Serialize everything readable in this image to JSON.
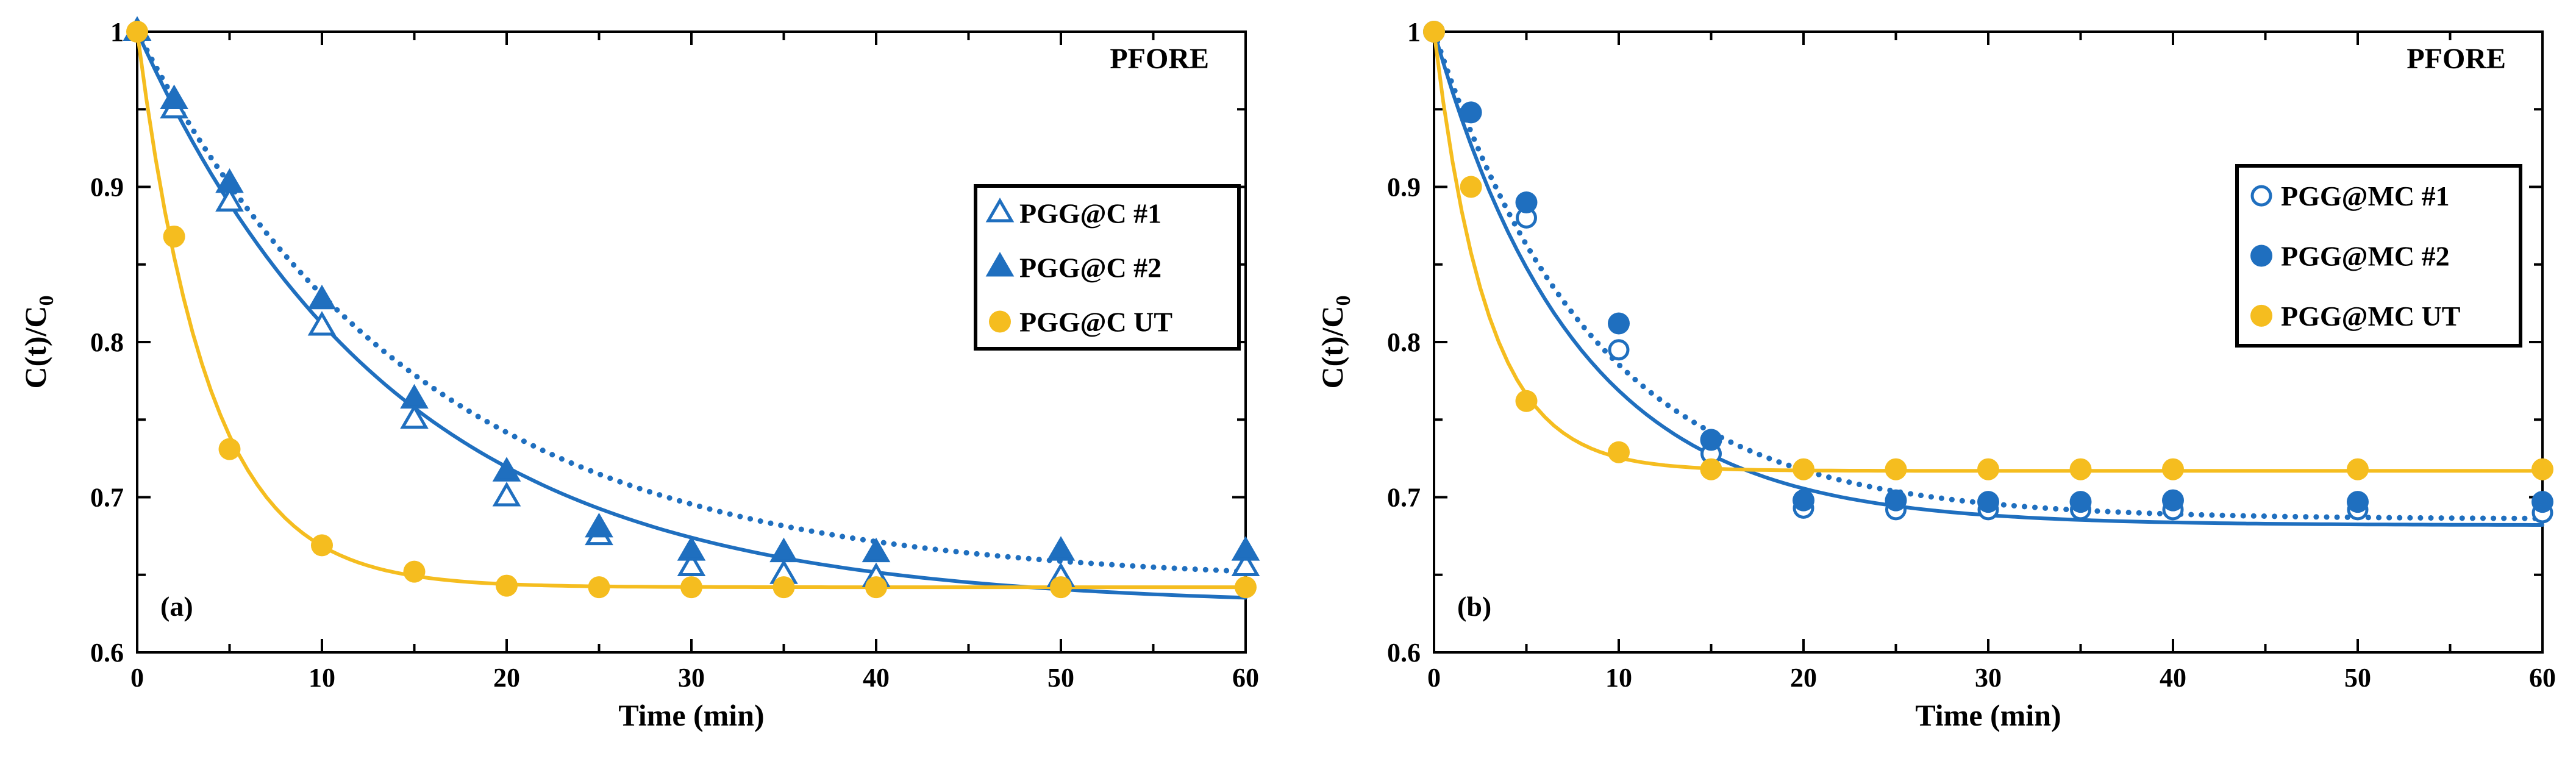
{
  "colors": {
    "blue": "#1f6fbf",
    "yellow": "#f5bd1f",
    "axis": "#000000",
    "background": "#ffffff"
  },
  "chart_data": [
    {
      "type": "scatter",
      "panel_label": "(a)",
      "title": "PFORE",
      "xlabel": "Time (min)",
      "ylabel_main": "C(t)/C",
      "ylabel_sub": "0",
      "xlim": [
        0,
        60
      ],
      "ylim": [
        0.6,
        1.0
      ],
      "x_ticks": [
        "0",
        "10",
        "20",
        "30",
        "40",
        "50",
        "60"
      ],
      "y_ticks": [
        "0.6",
        "0.7",
        "0.8",
        "0.9",
        "1"
      ],
      "grid": false,
      "legend_position": "right",
      "series": [
        {
          "name": "PGG@C #1",
          "marker": "triangle-open",
          "color": "#1f6fbf",
          "x": [
            0,
            2,
            5,
            10,
            15,
            20,
            25,
            30,
            35,
            40,
            50,
            60
          ],
          "y": [
            1.0,
            0.95,
            0.89,
            0.81,
            0.75,
            0.7,
            0.675,
            0.655,
            0.65,
            0.648,
            0.648,
            0.655
          ]
        },
        {
          "name": "PGG@C #2",
          "marker": "triangle-filled",
          "color": "#1f6fbf",
          "x": [
            0,
            2,
            5,
            10,
            15,
            20,
            25,
            30,
            35,
            40,
            50,
            60
          ],
          "y": [
            1.0,
            0.956,
            0.902,
            0.827,
            0.763,
            0.716,
            0.68,
            0.665,
            0.664,
            0.664,
            0.665,
            0.665
          ]
        },
        {
          "name": "PGG@C UT",
          "marker": "circle-filled",
          "color": "#f5bd1f",
          "x": [
            0,
            2,
            5,
            10,
            15,
            20,
            25,
            30,
            35,
            40,
            50,
            60
          ],
          "y": [
            1.0,
            0.868,
            0.731,
            0.669,
            0.652,
            0.643,
            0.642,
            0.642,
            0.642,
            0.642,
            0.642,
            0.642
          ]
        }
      ],
      "fits": [
        {
          "style": "solid",
          "color": "#1f6fbf",
          "model": "exponential",
          "c_inf": 0.63,
          "k": 0.071
        },
        {
          "style": "dotted",
          "color": "#1f6fbf",
          "model": "exponential",
          "c_inf": 0.645,
          "k": 0.065
        },
        {
          "style": "solid",
          "color": "#f5bd1f",
          "model": "exponential",
          "c_inf": 0.642,
          "k": 0.26
        }
      ]
    },
    {
      "type": "scatter",
      "panel_label": "(b)",
      "title": "PFORE",
      "xlabel": "Time (min)",
      "ylabel_main": "C(t)/C",
      "ylabel_sub": "0",
      "xlim": [
        0,
        60
      ],
      "ylim": [
        0.6,
        1.0
      ],
      "x_ticks": [
        "0",
        "10",
        "20",
        "30",
        "40",
        "50",
        "60"
      ],
      "y_ticks": [
        "0.6",
        "0.7",
        "0.8",
        "0.9",
        "1"
      ],
      "grid": false,
      "legend_position": "top-right",
      "series": [
        {
          "name": "PGG@MC #1",
          "marker": "circle-open",
          "color": "#1f6fbf",
          "x": [
            0,
            2,
            5,
            10,
            15,
            20,
            25,
            30,
            35,
            40,
            50,
            60
          ],
          "y": [
            1.0,
            0.948,
            0.88,
            0.795,
            0.728,
            0.693,
            0.692,
            0.692,
            0.692,
            0.692,
            0.692,
            0.69
          ]
        },
        {
          "name": "PGG@MC #2",
          "marker": "circle-filled",
          "color": "#1f6fbf",
          "x": [
            0,
            2,
            5,
            10,
            15,
            20,
            25,
            30,
            35,
            40,
            50,
            60
          ],
          "y": [
            1.0,
            0.948,
            0.89,
            0.812,
            0.737,
            0.698,
            0.698,
            0.697,
            0.697,
            0.698,
            0.697,
            0.697
          ]
        },
        {
          "name": "PGG@MC UT",
          "marker": "circle-filled",
          "color": "#f5bd1f",
          "x": [
            0,
            2,
            5,
            10,
            15,
            20,
            25,
            30,
            35,
            40,
            50,
            60
          ],
          "y": [
            1.0,
            0.9,
            0.762,
            0.729,
            0.718,
            0.718,
            0.718,
            0.718,
            0.718,
            0.718,
            0.718,
            0.718
          ]
        }
      ],
      "fits": [
        {
          "style": "solid",
          "color": "#1f6fbf",
          "model": "exponential",
          "c_inf": 0.682,
          "k": 0.13
        },
        {
          "style": "dotted",
          "color": "#1f6fbf",
          "model": "exponential",
          "c_inf": 0.686,
          "k": 0.115
        },
        {
          "style": "solid",
          "color": "#f5bd1f",
          "model": "exponential",
          "c_inf": 0.717,
          "k": 0.35
        }
      ]
    }
  ]
}
